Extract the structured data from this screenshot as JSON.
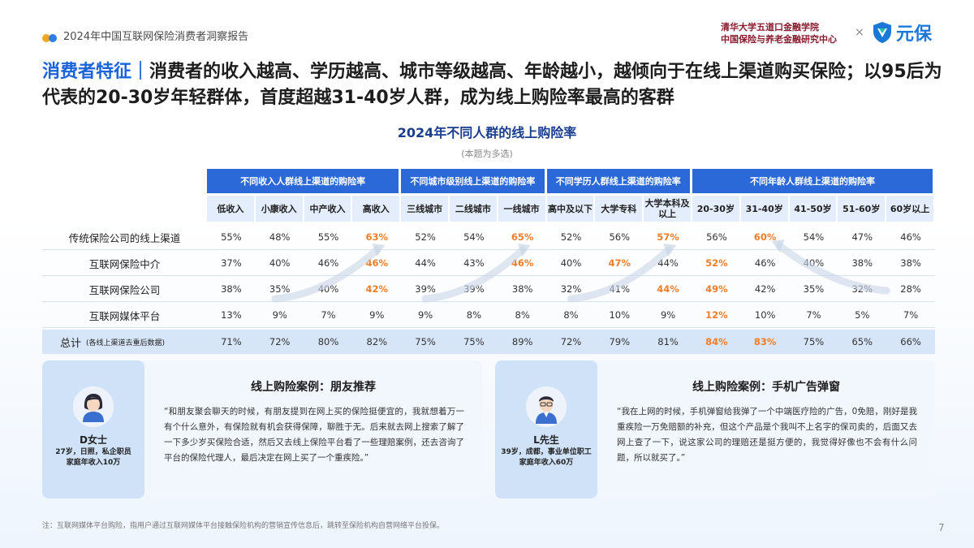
{
  "header": {
    "report_title": "2024年中国互联网保险消费者洞察报告",
    "institution_line1": "清华大学五道口金融学院",
    "institution_line2": "中国保险与养老金融研究中心",
    "times": "×",
    "logo_text": "元保",
    "logo_icon": "shield-logo-icon"
  },
  "headline": {
    "highlight": "消费者特征｜",
    "text": "消费者的收入越高、学历越高、城市等级越高、年龄越小，越倾向于在线上渠道购买保险；以95后为代表的20-30岁年轻群体，首度超越31-40岁人群，成为线上购险率最高的客群"
  },
  "chart": {
    "title": "2024年不同人群的线上购险率",
    "subtitle": "(本题为多选)"
  },
  "table": {
    "groups": [
      {
        "label": "不同收入人群线上渠道的购险率",
        "span": 4
      },
      {
        "label": "不同城市级别线上渠道的购险率",
        "span": 3
      },
      {
        "label": "不同学历人群线上渠道的购险率",
        "span": 3
      },
      {
        "label": "不同年龄人群线上渠道的购险率",
        "span": 5
      }
    ],
    "columns": [
      "低收入",
      "小康收入",
      "中产收入",
      "高收入",
      "三线城市",
      "二线城市",
      "一线城市",
      "高中及以下",
      "大学专科",
      "大学本科及以上",
      "20-30岁",
      "31-40岁",
      "41-50岁",
      "51-60岁",
      "60岁以上"
    ],
    "rows": [
      {
        "label": "传统保险公司的线上渠道",
        "values": [
          "55%",
          "48%",
          "55%",
          "63%",
          "52%",
          "54%",
          "65%",
          "52%",
          "56%",
          "57%",
          "56%",
          "60%",
          "54%",
          "47%",
          "46%"
        ],
        "highlight": [
          3,
          6,
          9,
          11
        ]
      },
      {
        "label": "互联网保险中介",
        "values": [
          "37%",
          "40%",
          "46%",
          "46%",
          "44%",
          "43%",
          "46%",
          "40%",
          "47%",
          "44%",
          "52%",
          "46%",
          "40%",
          "38%",
          "38%"
        ],
        "highlight": [
          3,
          6,
          8,
          10
        ]
      },
      {
        "label": "互联网保险公司",
        "values": [
          "38%",
          "35%",
          "40%",
          "42%",
          "39%",
          "39%",
          "38%",
          "32%",
          "41%",
          "44%",
          "49%",
          "42%",
          "35%",
          "32%",
          "28%"
        ],
        "highlight": [
          3,
          9,
          10
        ]
      },
      {
        "label": "互联网媒体平台",
        "values": [
          "13%",
          "9%",
          "7%",
          "9%",
          "9%",
          "8%",
          "8%",
          "8%",
          "10%",
          "9%",
          "12%",
          "10%",
          "7%",
          "5%",
          "7%"
        ],
        "highlight": [
          10
        ]
      }
    ],
    "total": {
      "label_main": "总计",
      "label_note": "(各线上渠道去重后数据)",
      "values": [
        "71%",
        "72%",
        "80%",
        "82%",
        "75%",
        "75%",
        "89%",
        "72%",
        "79%",
        "81%",
        "84%",
        "83%",
        "75%",
        "65%",
        "66%"
      ],
      "highlight": [
        10,
        11
      ]
    },
    "colors": {
      "header": "#2b68d8",
      "subheader": "#e3edfb",
      "highlight": "#f07d28",
      "total_row": "#d7e5f8"
    }
  },
  "cases": {
    "left": {
      "title": "线上购险案例：朋友推荐",
      "name": "D女士",
      "desc1": "27岁，日照，私企职员",
      "desc2": "家庭年收入10万",
      "quote": "“和朋友聚会聊天的时候，有朋友提到在网上买的保险挺便宜的，我就想着万一有个什么意外，有保险就有机会获得保障，聊胜于无。后来就去网上搜索了解了一下多少岁买保险合适，然后又去线上保险平台看了一些理赔案例，还去咨询了平台的保险代理人，最后决定在网上买了一个重疾险。”"
    },
    "right": {
      "title": "线上购险案例：手机广告弹窗",
      "name": "L先生",
      "desc1": "39岁，成都，事业单位职工",
      "desc2": "家庭年收入60万",
      "quote": "“我在上网的时候，手机弹窗给我弹了一个中端医疗险的广告，0免赔，刚好是我重疾险一万免赔额的补充，但这个产品是个我叫不上名字的保司卖的，后面又去网上查了一下，说这家公司的理赔还是挺方便的，我觉得好像也不会有什么问题，所以就买了。”"
    }
  },
  "footnote": "注：互联网媒体平台购险，指用户通过互联网媒体平台接触保险机构的营销宣传信息后，跳转至保险机构自营网络平台投保。",
  "page_number": "7"
}
